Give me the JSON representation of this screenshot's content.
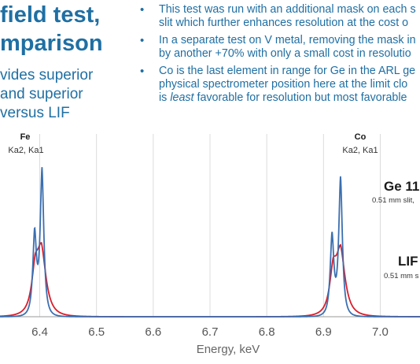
{
  "title": {
    "line1": "field test,",
    "line2": "mparison"
  },
  "subtitle": {
    "line1": "vides superior",
    "line2": "and superior",
    "line3": "versus LIF"
  },
  "bullets": [
    {
      "id": "b1",
      "lines": [
        "This test was run with an additional mask on each s",
        "slit which further enhances resolution at the cost o"
      ]
    },
    {
      "id": "b2",
      "lines": [
        "In a separate test on V metal, removing the mask in",
        "by another +70% with only a small cost in resolutio"
      ]
    },
    {
      "id": "b3",
      "lines": [
        "Co is the last element in range for Ge in the ARL ge",
        "physical spectrometer position here at the limit clo"
      ],
      "line3_pre": "is ",
      "line3_em": "least",
      "line3_post": " favorable for resolution but most favorable"
    }
  ],
  "chart_data": {
    "type": "line",
    "xlabel": "Energy, keV",
    "xlim": [
      6.33,
      7.07
    ],
    "ylim": [
      0,
      1.05
    ],
    "x_ticks": [
      6.4,
      6.5,
      6.6,
      6.7,
      6.8,
      6.9,
      7.0
    ],
    "x_tick_labels": [
      "6.4",
      "6.5",
      "6.6",
      "6.7",
      "6.8",
      "6.9",
      "7.0"
    ],
    "grid": "vertical",
    "colors": {
      "ge": "#3b6fb0",
      "lif": "#d81e2c",
      "grid": "#dcdcdc",
      "axis": "#9a9a9a"
    },
    "series": [
      {
        "name": "Ge 11",
        "peaks": [
          {
            "center": 6.391,
            "height": 0.56,
            "sigma": 0.0032
          },
          {
            "center": 6.404,
            "height": 1.0,
            "sigma": 0.0032
          },
          {
            "center": 6.915,
            "height": 0.55,
            "sigma": 0.0032
          },
          {
            "center": 6.93,
            "height": 0.95,
            "sigma": 0.0032
          }
        ]
      },
      {
        "name": "LIF",
        "peaks": [
          {
            "center": 6.392,
            "height": 0.25,
            "sigma": 0.006
          },
          {
            "center": 6.403,
            "height": 0.44,
            "sigma": 0.008
          },
          {
            "center": 6.917,
            "height": 0.26,
            "sigma": 0.006
          },
          {
            "center": 6.93,
            "height": 0.44,
            "sigma": 0.008
          }
        ]
      }
    ],
    "annotations": [
      {
        "id": "fe",
        "title": "Fe",
        "sub": "Ka2, Ka1"
      },
      {
        "id": "co",
        "title": "Co",
        "sub": "Ka2, Ka1"
      },
      {
        "id": "ge",
        "title": "Ge 11",
        "sub": "0.51 mm slit,"
      },
      {
        "id": "lif",
        "title": "LIF",
        "sub": "0.51 mm s"
      }
    ]
  }
}
